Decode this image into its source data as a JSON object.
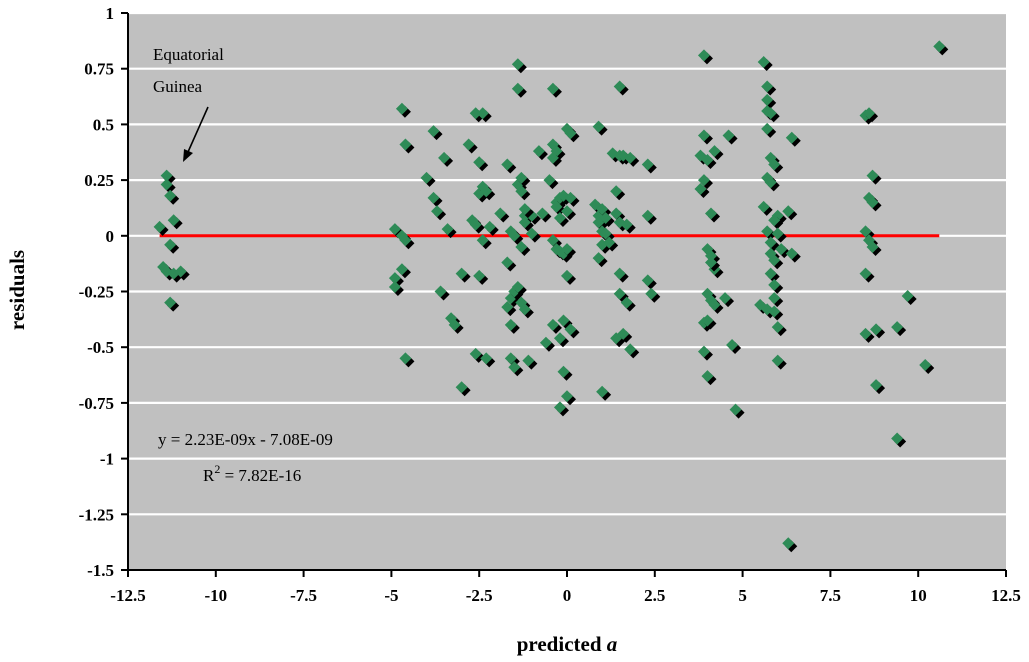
{
  "chart_data": {
    "type": "scatter",
    "xlabel": "predicted",
    "xlabel_italic": "a",
    "ylabel": "residuals",
    "xlim": [
      -12.5,
      12.5
    ],
    "ylim": [
      -1.5,
      1
    ],
    "xticks": [
      -12.5,
      -10,
      -7.5,
      -5,
      -2.5,
      0,
      2.5,
      5,
      7.5,
      10,
      12.5
    ],
    "yticks": [
      -1.5,
      -1.25,
      -1,
      -0.75,
      -0.5,
      -0.25,
      0,
      0.25,
      0.5,
      0.75,
      1
    ],
    "xtick_labels": [
      "-12.5",
      "-10",
      "-7.5",
      "-5",
      "-2.5",
      "0",
      "2.5",
      "5",
      "7.5",
      "10",
      "12.5"
    ],
    "ytick_labels": [
      "-1.5",
      "-1.25",
      "-1",
      "-0.75",
      "-0.5",
      "-0.25",
      "0",
      "0.25",
      "0.5",
      "0.75",
      "1"
    ],
    "grid": "horizontal",
    "background_color": "#c0c0c0",
    "point_color": "#2e8b57",
    "point_shadow_color": "#000000",
    "trend_color": "#ff0000",
    "trendline": {
      "slope": 2.23e-09,
      "intercept": -7.08e-09,
      "x_range": [
        -11.6,
        10.6
      ]
    },
    "annotations": {
      "label_line1": "Equatorial",
      "label_line2": "Guinea",
      "equation": "y = 2.23E-09x - 7.08E-09",
      "r2_prefix": "R",
      "r2_sup": "2",
      "r2_value": " = 7.82E-16"
    },
    "points": [
      [
        -11.6,
        0.04
      ],
      [
        -11.5,
        -0.14
      ],
      [
        -11.4,
        0.27
      ],
      [
        -11.4,
        0.23
      ],
      [
        -11.3,
        0.18
      ],
      [
        -11.2,
        0.07
      ],
      [
        -11.3,
        -0.04
      ],
      [
        -11.4,
        -0.16
      ],
      [
        -11.2,
        -0.17
      ],
      [
        -11.0,
        -0.16
      ],
      [
        -11.3,
        -0.3
      ],
      [
        -4.7,
        0.57
      ],
      [
        -4.6,
        0.41
      ],
      [
        -4.9,
        0.03
      ],
      [
        -4.7,
        0.0
      ],
      [
        -4.6,
        -0.02
      ],
      [
        -4.9,
        -0.19
      ],
      [
        -4.7,
        -0.15
      ],
      [
        -4.9,
        -0.23
      ],
      [
        -4.6,
        -0.55
      ],
      [
        -3.8,
        0.47
      ],
      [
        -4.0,
        0.26
      ],
      [
        -3.8,
        0.17
      ],
      [
        -3.7,
        0.11
      ],
      [
        -3.5,
        0.35
      ],
      [
        -3.4,
        0.03
      ],
      [
        -3.6,
        -0.25
      ],
      [
        -3.3,
        -0.37
      ],
      [
        -3.2,
        -0.4
      ],
      [
        -3.0,
        -0.68
      ],
      [
        -3.0,
        -0.17
      ],
      [
        -2.8,
        0.41
      ],
      [
        -2.7,
        0.07
      ],
      [
        -2.6,
        0.55
      ],
      [
        -2.5,
        0.19
      ],
      [
        -2.4,
        0.55
      ],
      [
        -2.5,
        0.33
      ],
      [
        -2.6,
        0.05
      ],
      [
        -2.4,
        -0.02
      ],
      [
        -2.5,
        -0.18
      ],
      [
        -2.6,
        -0.53
      ],
      [
        -2.3,
        -0.55
      ],
      [
        -2.2,
        0.04
      ],
      [
        -2.4,
        0.22
      ],
      [
        -2.3,
        0.2
      ],
      [
        -1.9,
        0.1
      ],
      [
        -1.7,
        0.32
      ],
      [
        -1.6,
        0.02
      ],
      [
        -1.7,
        -0.12
      ],
      [
        -1.5,
        0.0
      ],
      [
        -1.6,
        -0.28
      ],
      [
        -1.7,
        -0.32
      ],
      [
        -1.6,
        -0.4
      ],
      [
        -1.5,
        -0.25
      ],
      [
        -1.6,
        -0.55
      ],
      [
        -1.5,
        -0.59
      ],
      [
        -1.4,
        0.77
      ],
      [
        -1.4,
        0.66
      ],
      [
        -1.4,
        0.23
      ],
      [
        -1.3,
        0.26
      ],
      [
        -1.3,
        0.2
      ],
      [
        -1.2,
        0.09
      ],
      [
        -1.2,
        0.06
      ],
      [
        -1.3,
        -0.05
      ],
      [
        -1.4,
        -0.23
      ],
      [
        -1.3,
        -0.3
      ],
      [
        -1.2,
        -0.33
      ],
      [
        -1.1,
        -0.56
      ],
      [
        -1.0,
        0.09
      ],
      [
        -1.2,
        0.12
      ],
      [
        -1.0,
        0.01
      ],
      [
        -0.8,
        0.38
      ],
      [
        -0.7,
        0.1
      ],
      [
        -0.6,
        -0.48
      ],
      [
        -0.4,
        0.66
      ],
      [
        -0.4,
        0.41
      ],
      [
        -0.5,
        0.25
      ],
      [
        -0.3,
        0.38
      ],
      [
        -0.4,
        0.35
      ],
      [
        -0.3,
        0.15
      ],
      [
        -0.2,
        0.17
      ],
      [
        -0.3,
        0.13
      ],
      [
        -0.2,
        0.08
      ],
      [
        -0.4,
        -0.02
      ],
      [
        -0.3,
        -0.06
      ],
      [
        -0.2,
        -0.07
      ],
      [
        -0.1,
        -0.08
      ],
      [
        -0.4,
        -0.4
      ],
      [
        -0.2,
        -0.46
      ],
      [
        -0.2,
        -0.77
      ],
      [
        -0.1,
        -0.38
      ],
      [
        -0.1,
        -0.61
      ],
      [
        0.0,
        -0.72
      ],
      [
        0.0,
        0.48
      ],
      [
        0.1,
        0.46
      ],
      [
        -0.1,
        0.18
      ],
      [
        0.1,
        0.17
      ],
      [
        0.0,
        0.11
      ],
      [
        0.0,
        -0.06
      ],
      [
        0.0,
        -0.18
      ],
      [
        0.1,
        -0.42
      ],
      [
        0.9,
        0.49
      ],
      [
        0.8,
        0.14
      ],
      [
        0.9,
        0.09
      ],
      [
        1.0,
        0.12
      ],
      [
        0.9,
        0.06
      ],
      [
        1.0,
        0.02
      ],
      [
        1.1,
        0.08
      ],
      [
        1.0,
        -0.04
      ],
      [
        0.9,
        -0.1
      ],
      [
        1.0,
        -0.7
      ],
      [
        1.1,
        0.01
      ],
      [
        1.2,
        -0.03
      ],
      [
        1.3,
        0.37
      ],
      [
        1.4,
        0.2
      ],
      [
        1.5,
        0.67
      ],
      [
        1.5,
        0.36
      ],
      [
        1.4,
        0.1
      ],
      [
        1.5,
        0.06
      ],
      [
        1.5,
        -0.17
      ],
      [
        1.5,
        -0.26
      ],
      [
        1.4,
        -0.46
      ],
      [
        1.6,
        -0.44
      ],
      [
        1.6,
        0.36
      ],
      [
        1.7,
        0.05
      ],
      [
        1.8,
        0.35
      ],
      [
        1.7,
        -0.3
      ],
      [
        1.8,
        -0.51
      ],
      [
        2.3,
        0.32
      ],
      [
        2.3,
        0.09
      ],
      [
        2.3,
        -0.2
      ],
      [
        2.4,
        -0.26
      ],
      [
        3.9,
        0.81
      ],
      [
        3.9,
        0.45
      ],
      [
        3.8,
        0.36
      ],
      [
        3.9,
        0.25
      ],
      [
        3.8,
        0.21
      ],
      [
        3.9,
        -0.39
      ],
      [
        3.9,
        -0.52
      ],
      [
        4.0,
        -0.63
      ],
      [
        4.0,
        -0.06
      ],
      [
        4.1,
        -0.09
      ],
      [
        4.0,
        -0.26
      ],
      [
        4.2,
        -0.15
      ],
      [
        4.1,
        -0.12
      ],
      [
        4.1,
        0.1
      ],
      [
        4.2,
        0.38
      ],
      [
        4.0,
        0.34
      ],
      [
        4.1,
        -0.29
      ],
      [
        4.2,
        -0.31
      ],
      [
        4.0,
        -0.38
      ],
      [
        4.6,
        0.45
      ],
      [
        4.7,
        -0.49
      ],
      [
        4.5,
        -0.28
      ],
      [
        4.8,
        -0.78
      ],
      [
        5.5,
        -0.31
      ],
      [
        5.6,
        0.78
      ],
      [
        5.7,
        0.67
      ],
      [
        5.7,
        0.61
      ],
      [
        5.7,
        0.56
      ],
      [
        5.8,
        0.55
      ],
      [
        5.7,
        0.48
      ],
      [
        5.8,
        0.35
      ],
      [
        5.9,
        0.32
      ],
      [
        5.7,
        0.26
      ],
      [
        5.8,
        0.24
      ],
      [
        5.6,
        0.13
      ],
      [
        5.7,
        0.02
      ],
      [
        5.8,
        -0.03
      ],
      [
        5.8,
        -0.08
      ],
      [
        5.9,
        -0.11
      ],
      [
        5.8,
        -0.17
      ],
      [
        5.9,
        -0.22
      ],
      [
        5.9,
        -0.28
      ],
      [
        5.7,
        -0.33
      ],
      [
        5.9,
        -0.34
      ],
      [
        6.0,
        -0.41
      ],
      [
        6.0,
        -0.56
      ],
      [
        6.0,
        0.09
      ],
      [
        5.9,
        0.07
      ],
      [
        6.0,
        0.01
      ],
      [
        6.1,
        -0.06
      ],
      [
        6.4,
        0.44
      ],
      [
        6.3,
        0.11
      ],
      [
        6.4,
        -0.08
      ],
      [
        6.3,
        -1.38
      ],
      [
        8.5,
        0.54
      ],
      [
        8.6,
        0.55
      ],
      [
        8.6,
        0.17
      ],
      [
        8.5,
        0.02
      ],
      [
        8.7,
        0.27
      ],
      [
        8.7,
        0.15
      ],
      [
        8.6,
        -0.02
      ],
      [
        8.7,
        -0.05
      ],
      [
        8.5,
        -0.17
      ],
      [
        8.5,
        -0.44
      ],
      [
        8.8,
        -0.42
      ],
      [
        8.8,
        -0.67
      ],
      [
        9.4,
        -0.41
      ],
      [
        9.4,
        -0.91
      ],
      [
        9.7,
        -0.27
      ],
      [
        10.2,
        -0.58
      ],
      [
        10.6,
        0.85
      ]
    ]
  }
}
